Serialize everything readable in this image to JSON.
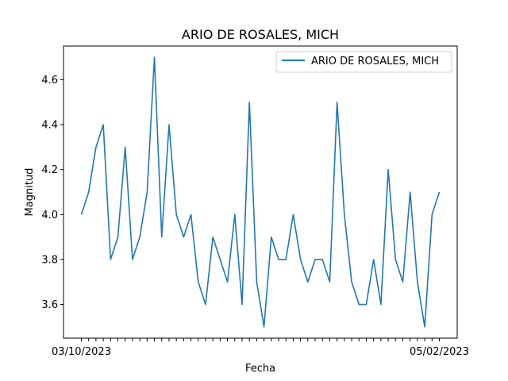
{
  "chart_data": {
    "type": "line",
    "title": "ARIO DE ROSALES, MICH",
    "xlabel": "Fecha",
    "ylabel": "Magnitud",
    "ylim": [
      3.45,
      4.75
    ],
    "yticks": [
      "3.6",
      "3.8",
      "4.0",
      "4.2",
      "4.4",
      "4.6"
    ],
    "legend_position": "top-right",
    "grid": false,
    "line_color": "#1f77b4",
    "x_first_label": "03/10/2023",
    "x_last_label": "05/02/2023",
    "series": [
      {
        "name": "ARIO DE ROSALES, MICH",
        "values": [
          4.0,
          4.1,
          4.3,
          4.4,
          3.8,
          3.9,
          4.3,
          3.8,
          3.9,
          4.1,
          4.7,
          3.9,
          4.4,
          4.0,
          3.9,
          4.0,
          3.7,
          3.6,
          3.9,
          3.8,
          3.7,
          4.0,
          3.6,
          4.5,
          3.7,
          3.5,
          3.9,
          3.8,
          3.8,
          4.0,
          3.8,
          3.7,
          3.8,
          3.8,
          3.7,
          4.5,
          4.0,
          3.7,
          3.6,
          3.6,
          3.8,
          3.6,
          4.2,
          3.8,
          3.7,
          4.1,
          3.7,
          3.5,
          4.0,
          4.1
        ]
      }
    ]
  }
}
